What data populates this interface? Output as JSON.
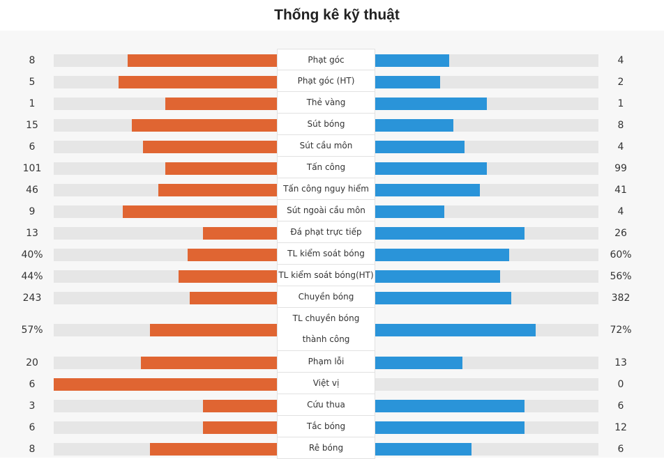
{
  "title": "Thống kê kỹ thuật",
  "colors": {
    "home": "#e06532",
    "away": "#2a94d9",
    "track": "#e6e6e6"
  },
  "stats": [
    {
      "label": "Phạt góc",
      "home": "8",
      "away": "4",
      "home_frac": 0.67,
      "away_frac": 0.33
    },
    {
      "label": "Phạt góc (HT)",
      "home": "5",
      "away": "2",
      "home_frac": 0.71,
      "away_frac": 0.29
    },
    {
      "label": "Thẻ vàng",
      "home": "1",
      "away": "1",
      "home_frac": 0.5,
      "away_frac": 0.5
    },
    {
      "label": "Sút bóng",
      "home": "15",
      "away": "8",
      "home_frac": 0.65,
      "away_frac": 0.35
    },
    {
      "label": "Sút cầu môn",
      "home": "6",
      "away": "4",
      "home_frac": 0.6,
      "away_frac": 0.4
    },
    {
      "label": "Tấn công",
      "home": "101",
      "away": "99",
      "home_frac": 0.5,
      "away_frac": 0.5
    },
    {
      "label": "Tấn công nguy hiểm",
      "home": "46",
      "away": "41",
      "home_frac": 0.53,
      "away_frac": 0.47
    },
    {
      "label": "Sút ngoài cầu môn",
      "home": "9",
      "away": "4",
      "home_frac": 0.69,
      "away_frac": 0.31
    },
    {
      "label": "Đá phạt trực tiếp",
      "home": "13",
      "away": "26",
      "home_frac": 0.33,
      "away_frac": 0.67
    },
    {
      "label": "TL kiểm soát bóng",
      "home": "40%",
      "away": "60%",
      "home_frac": 0.4,
      "away_frac": 0.6
    },
    {
      "label": "TL kiểm soát bóng(HT)",
      "home": "44%",
      "away": "56%",
      "home_frac": 0.44,
      "away_frac": 0.56
    },
    {
      "label": "Chuyền bóng",
      "home": "243",
      "away": "382",
      "home_frac": 0.39,
      "away_frac": 0.61
    },
    {
      "label": "TL chuyền bóng thành công",
      "home": "57%",
      "away": "72%",
      "home_frac": 0.57,
      "away_frac": 0.72
    },
    {
      "label": "Phạm lỗi",
      "home": "20",
      "away": "13",
      "home_frac": 0.61,
      "away_frac": 0.39
    },
    {
      "label": "Việt vị",
      "home": "6",
      "away": "0",
      "home_frac": 1.0,
      "away_frac": 0.0
    },
    {
      "label": "Cứu thua",
      "home": "3",
      "away": "6",
      "home_frac": 0.33,
      "away_frac": 0.67
    },
    {
      "label": "Tắc bóng",
      "home": "6",
      "away": "12",
      "home_frac": 0.33,
      "away_frac": 0.67
    },
    {
      "label": "Rê bóng",
      "home": "8",
      "away": "6",
      "home_frac": 0.57,
      "away_frac": 0.43
    }
  ]
}
